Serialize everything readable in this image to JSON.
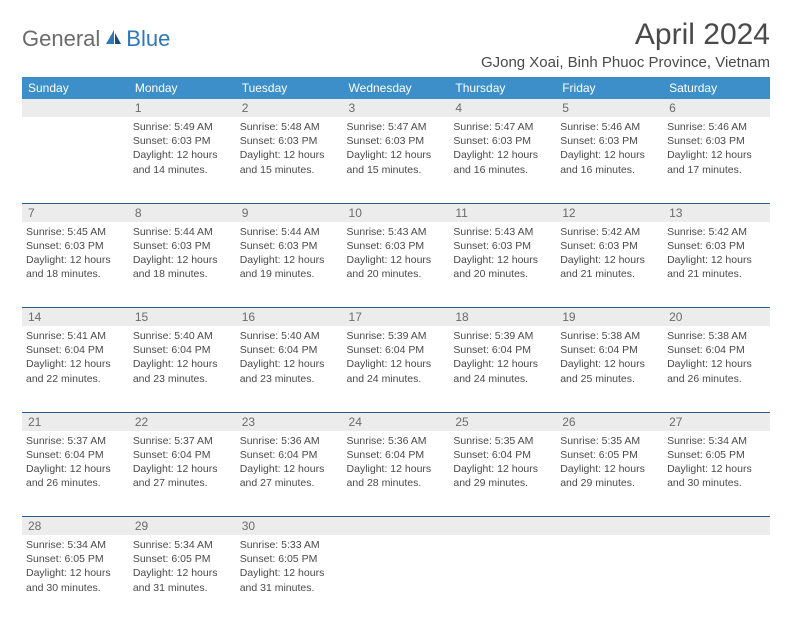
{
  "logo": {
    "general": "General",
    "blue": "Blue"
  },
  "title": "April 2024",
  "location": "GJong Xoai, Binh Phuoc Province, Vietnam",
  "colors": {
    "header_bg": "#3d8fc9",
    "header_text": "#ffffff",
    "daynum_bg": "#ececec",
    "row_border": "#2e5b8a",
    "body_text": "#4a4a4a",
    "logo_gray": "#6b6b6b",
    "logo_blue": "#2e77b8"
  },
  "weekdays": [
    "Sunday",
    "Monday",
    "Tuesday",
    "Wednesday",
    "Thursday",
    "Friday",
    "Saturday"
  ],
  "weeks": [
    {
      "days": [
        {
          "num": "",
          "lines": [
            "",
            "",
            "",
            ""
          ]
        },
        {
          "num": "1",
          "lines": [
            "Sunrise: 5:49 AM",
            "Sunset: 6:03 PM",
            "Daylight: 12 hours",
            "and 14 minutes."
          ]
        },
        {
          "num": "2",
          "lines": [
            "Sunrise: 5:48 AM",
            "Sunset: 6:03 PM",
            "Daylight: 12 hours",
            "and 15 minutes."
          ]
        },
        {
          "num": "3",
          "lines": [
            "Sunrise: 5:47 AM",
            "Sunset: 6:03 PM",
            "Daylight: 12 hours",
            "and 15 minutes."
          ]
        },
        {
          "num": "4",
          "lines": [
            "Sunrise: 5:47 AM",
            "Sunset: 6:03 PM",
            "Daylight: 12 hours",
            "and 16 minutes."
          ]
        },
        {
          "num": "5",
          "lines": [
            "Sunrise: 5:46 AM",
            "Sunset: 6:03 PM",
            "Daylight: 12 hours",
            "and 16 minutes."
          ]
        },
        {
          "num": "6",
          "lines": [
            "Sunrise: 5:46 AM",
            "Sunset: 6:03 PM",
            "Daylight: 12 hours",
            "and 17 minutes."
          ]
        }
      ]
    },
    {
      "days": [
        {
          "num": "7",
          "lines": [
            "Sunrise: 5:45 AM",
            "Sunset: 6:03 PM",
            "Daylight: 12 hours",
            "and 18 minutes."
          ]
        },
        {
          "num": "8",
          "lines": [
            "Sunrise: 5:44 AM",
            "Sunset: 6:03 PM",
            "Daylight: 12 hours",
            "and 18 minutes."
          ]
        },
        {
          "num": "9",
          "lines": [
            "Sunrise: 5:44 AM",
            "Sunset: 6:03 PM",
            "Daylight: 12 hours",
            "and 19 minutes."
          ]
        },
        {
          "num": "10",
          "lines": [
            "Sunrise: 5:43 AM",
            "Sunset: 6:03 PM",
            "Daylight: 12 hours",
            "and 20 minutes."
          ]
        },
        {
          "num": "11",
          "lines": [
            "Sunrise: 5:43 AM",
            "Sunset: 6:03 PM",
            "Daylight: 12 hours",
            "and 20 minutes."
          ]
        },
        {
          "num": "12",
          "lines": [
            "Sunrise: 5:42 AM",
            "Sunset: 6:03 PM",
            "Daylight: 12 hours",
            "and 21 minutes."
          ]
        },
        {
          "num": "13",
          "lines": [
            "Sunrise: 5:42 AM",
            "Sunset: 6:03 PM",
            "Daylight: 12 hours",
            "and 21 minutes."
          ]
        }
      ]
    },
    {
      "days": [
        {
          "num": "14",
          "lines": [
            "Sunrise: 5:41 AM",
            "Sunset: 6:04 PM",
            "Daylight: 12 hours",
            "and 22 minutes."
          ]
        },
        {
          "num": "15",
          "lines": [
            "Sunrise: 5:40 AM",
            "Sunset: 6:04 PM",
            "Daylight: 12 hours",
            "and 23 minutes."
          ]
        },
        {
          "num": "16",
          "lines": [
            "Sunrise: 5:40 AM",
            "Sunset: 6:04 PM",
            "Daylight: 12 hours",
            "and 23 minutes."
          ]
        },
        {
          "num": "17",
          "lines": [
            "Sunrise: 5:39 AM",
            "Sunset: 6:04 PM",
            "Daylight: 12 hours",
            "and 24 minutes."
          ]
        },
        {
          "num": "18",
          "lines": [
            "Sunrise: 5:39 AM",
            "Sunset: 6:04 PM",
            "Daylight: 12 hours",
            "and 24 minutes."
          ]
        },
        {
          "num": "19",
          "lines": [
            "Sunrise: 5:38 AM",
            "Sunset: 6:04 PM",
            "Daylight: 12 hours",
            "and 25 minutes."
          ]
        },
        {
          "num": "20",
          "lines": [
            "Sunrise: 5:38 AM",
            "Sunset: 6:04 PM",
            "Daylight: 12 hours",
            "and 26 minutes."
          ]
        }
      ]
    },
    {
      "days": [
        {
          "num": "21",
          "lines": [
            "Sunrise: 5:37 AM",
            "Sunset: 6:04 PM",
            "Daylight: 12 hours",
            "and 26 minutes."
          ]
        },
        {
          "num": "22",
          "lines": [
            "Sunrise: 5:37 AM",
            "Sunset: 6:04 PM",
            "Daylight: 12 hours",
            "and 27 minutes."
          ]
        },
        {
          "num": "23",
          "lines": [
            "Sunrise: 5:36 AM",
            "Sunset: 6:04 PM",
            "Daylight: 12 hours",
            "and 27 minutes."
          ]
        },
        {
          "num": "24",
          "lines": [
            "Sunrise: 5:36 AM",
            "Sunset: 6:04 PM",
            "Daylight: 12 hours",
            "and 28 minutes."
          ]
        },
        {
          "num": "25",
          "lines": [
            "Sunrise: 5:35 AM",
            "Sunset: 6:04 PM",
            "Daylight: 12 hours",
            "and 29 minutes."
          ]
        },
        {
          "num": "26",
          "lines": [
            "Sunrise: 5:35 AM",
            "Sunset: 6:05 PM",
            "Daylight: 12 hours",
            "and 29 minutes."
          ]
        },
        {
          "num": "27",
          "lines": [
            "Sunrise: 5:34 AM",
            "Sunset: 6:05 PM",
            "Daylight: 12 hours",
            "and 30 minutes."
          ]
        }
      ]
    },
    {
      "days": [
        {
          "num": "28",
          "lines": [
            "Sunrise: 5:34 AM",
            "Sunset: 6:05 PM",
            "Daylight: 12 hours",
            "and 30 minutes."
          ]
        },
        {
          "num": "29",
          "lines": [
            "Sunrise: 5:34 AM",
            "Sunset: 6:05 PM",
            "Daylight: 12 hours",
            "and 31 minutes."
          ]
        },
        {
          "num": "30",
          "lines": [
            "Sunrise: 5:33 AM",
            "Sunset: 6:05 PM",
            "Daylight: 12 hours",
            "and 31 minutes."
          ]
        },
        {
          "num": "",
          "lines": [
            "",
            "",
            "",
            ""
          ]
        },
        {
          "num": "",
          "lines": [
            "",
            "",
            "",
            ""
          ]
        },
        {
          "num": "",
          "lines": [
            "",
            "",
            "",
            ""
          ]
        },
        {
          "num": "",
          "lines": [
            "",
            "",
            "",
            ""
          ]
        }
      ]
    }
  ]
}
